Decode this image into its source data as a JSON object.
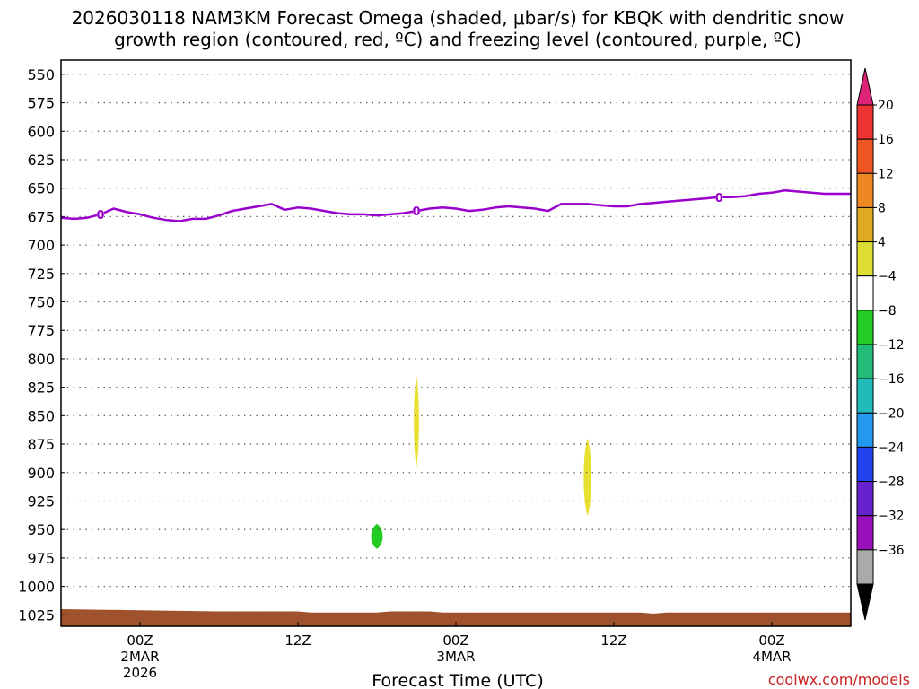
{
  "title": {
    "line1": "2026030118 NAM3KM Forecast Omega (shaded, μbar/s) for KBQK with dendritic snow",
    "line2": "growth region (contoured, red, ºC) and freezing level (contoured, purple, ºC)"
  },
  "credit": "coolwx.com/models",
  "colors": {
    "freezing_line": "#9900cc",
    "ground": "#a0522d",
    "positive_omega": "#e8e030",
    "negative_omega": "#22cc22"
  },
  "chart_data": {
    "type": "heatmap",
    "xlabel": "Forecast Time (UTC)",
    "ylabel": "",
    "x_unit": "hours since 2026-03-01 18Z",
    "xlim": [
      0,
      60
    ],
    "y_scale": "linear pressure, inverted",
    "ylim": [
      537.5,
      1035
    ],
    "y_ticks": [
      550,
      575,
      600,
      625,
      650,
      675,
      700,
      725,
      750,
      775,
      800,
      825,
      850,
      875,
      900,
      925,
      950,
      975,
      1000,
      1025
    ],
    "grid": true,
    "x_ticks": [
      {
        "x": 6,
        "label": "00Z",
        "date": "2MAR",
        "year": "2026"
      },
      {
        "x": 18,
        "label": "12Z",
        "date": "",
        "year": ""
      },
      {
        "x": 30,
        "label": "00Z",
        "date": "3MAR",
        "year": ""
      },
      {
        "x": 42,
        "label": "12Z",
        "date": "",
        "year": ""
      },
      {
        "x": 54,
        "label": "00Z",
        "date": "4MAR",
        "year": ""
      }
    ],
    "freezing_level": {
      "name": "0",
      "points": [
        [
          0,
          676
        ],
        [
          1,
          677
        ],
        [
          2,
          676
        ],
        [
          3,
          673
        ],
        [
          4,
          668
        ],
        [
          5,
          671
        ],
        [
          6,
          673
        ],
        [
          7,
          676
        ],
        [
          8,
          678
        ],
        [
          9,
          679
        ],
        [
          10,
          677
        ],
        [
          11,
          677
        ],
        [
          12,
          674
        ],
        [
          13,
          670
        ],
        [
          14,
          668
        ],
        [
          15,
          666
        ],
        [
          16,
          664
        ],
        [
          17,
          669
        ],
        [
          18,
          667
        ],
        [
          19,
          668
        ],
        [
          20,
          670
        ],
        [
          21,
          672
        ],
        [
          22,
          673
        ],
        [
          23,
          673
        ],
        [
          24,
          674
        ],
        [
          25,
          673
        ],
        [
          26,
          672
        ],
        [
          27,
          670
        ],
        [
          28,
          668
        ],
        [
          29,
          667
        ],
        [
          30,
          668
        ],
        [
          31,
          670
        ],
        [
          32,
          669
        ],
        [
          33,
          667
        ],
        [
          34,
          666
        ],
        [
          35,
          667
        ],
        [
          36,
          668
        ],
        [
          37,
          670
        ],
        [
          38,
          664
        ],
        [
          39,
          664
        ],
        [
          40,
          664
        ],
        [
          41,
          665
        ],
        [
          42,
          666
        ],
        [
          43,
          666
        ],
        [
          44,
          664
        ],
        [
          45,
          663
        ],
        [
          46,
          662
        ],
        [
          47,
          661
        ],
        [
          48,
          660
        ],
        [
          49,
          659
        ],
        [
          50,
          658
        ],
        [
          51,
          658
        ],
        [
          52,
          657
        ],
        [
          53,
          655
        ],
        [
          54,
          654
        ],
        [
          55,
          652
        ],
        [
          56,
          653
        ],
        [
          57,
          654
        ],
        [
          58,
          655
        ],
        [
          59,
          655
        ],
        [
          60,
          655
        ]
      ],
      "contour_labels": [
        {
          "x": 3,
          "text": "0"
        },
        {
          "x": 27,
          "text": "0"
        },
        {
          "x": 50,
          "text": "0"
        }
      ]
    },
    "omega_regions": [
      {
        "value_range": [
          4,
          8
        ],
        "x": 27,
        "p_top": 815,
        "p_bottom": 895,
        "half_width_hours": 0.2
      },
      {
        "value_range": [
          4,
          8
        ],
        "x": 40,
        "p_top": 870,
        "p_bottom": 938,
        "half_width_hours": 0.3
      },
      {
        "value_range": [
          -8,
          -4
        ],
        "x": 24,
        "p_top": 945,
        "p_bottom": 967,
        "half_width_hours": 0.45
      }
    ],
    "ground_surface": [
      [
        0,
        1020
      ],
      [
        6,
        1021
      ],
      [
        12,
        1022
      ],
      [
        18,
        1022
      ],
      [
        19,
        1023
      ],
      [
        24,
        1023
      ],
      [
        25,
        1022
      ],
      [
        28,
        1022
      ],
      [
        29,
        1023
      ],
      [
        44,
        1023
      ],
      [
        45,
        1024
      ],
      [
        46,
        1023
      ],
      [
        60,
        1023
      ]
    ],
    "colorbar": {
      "levels": [
        "20",
        "16",
        "12",
        "8",
        "4",
        "−4",
        "−8",
        "−12",
        "−16",
        "−20",
        "−24",
        "−28",
        "−32",
        "−36"
      ],
      "colors": [
        "#ee3333",
        "#ee5522",
        "#ee8822",
        "#e0aa22",
        "#dddd33",
        "#ffffff",
        "#22cc22",
        "#22bb77",
        "#22bbbb",
        "#2299ee",
        "#2244ee",
        "#6622cc",
        "#9911bb",
        "#aaaaaa"
      ],
      "top_arrow_color": "#dd2277",
      "bottom_arrow_color": "#000000"
    }
  }
}
